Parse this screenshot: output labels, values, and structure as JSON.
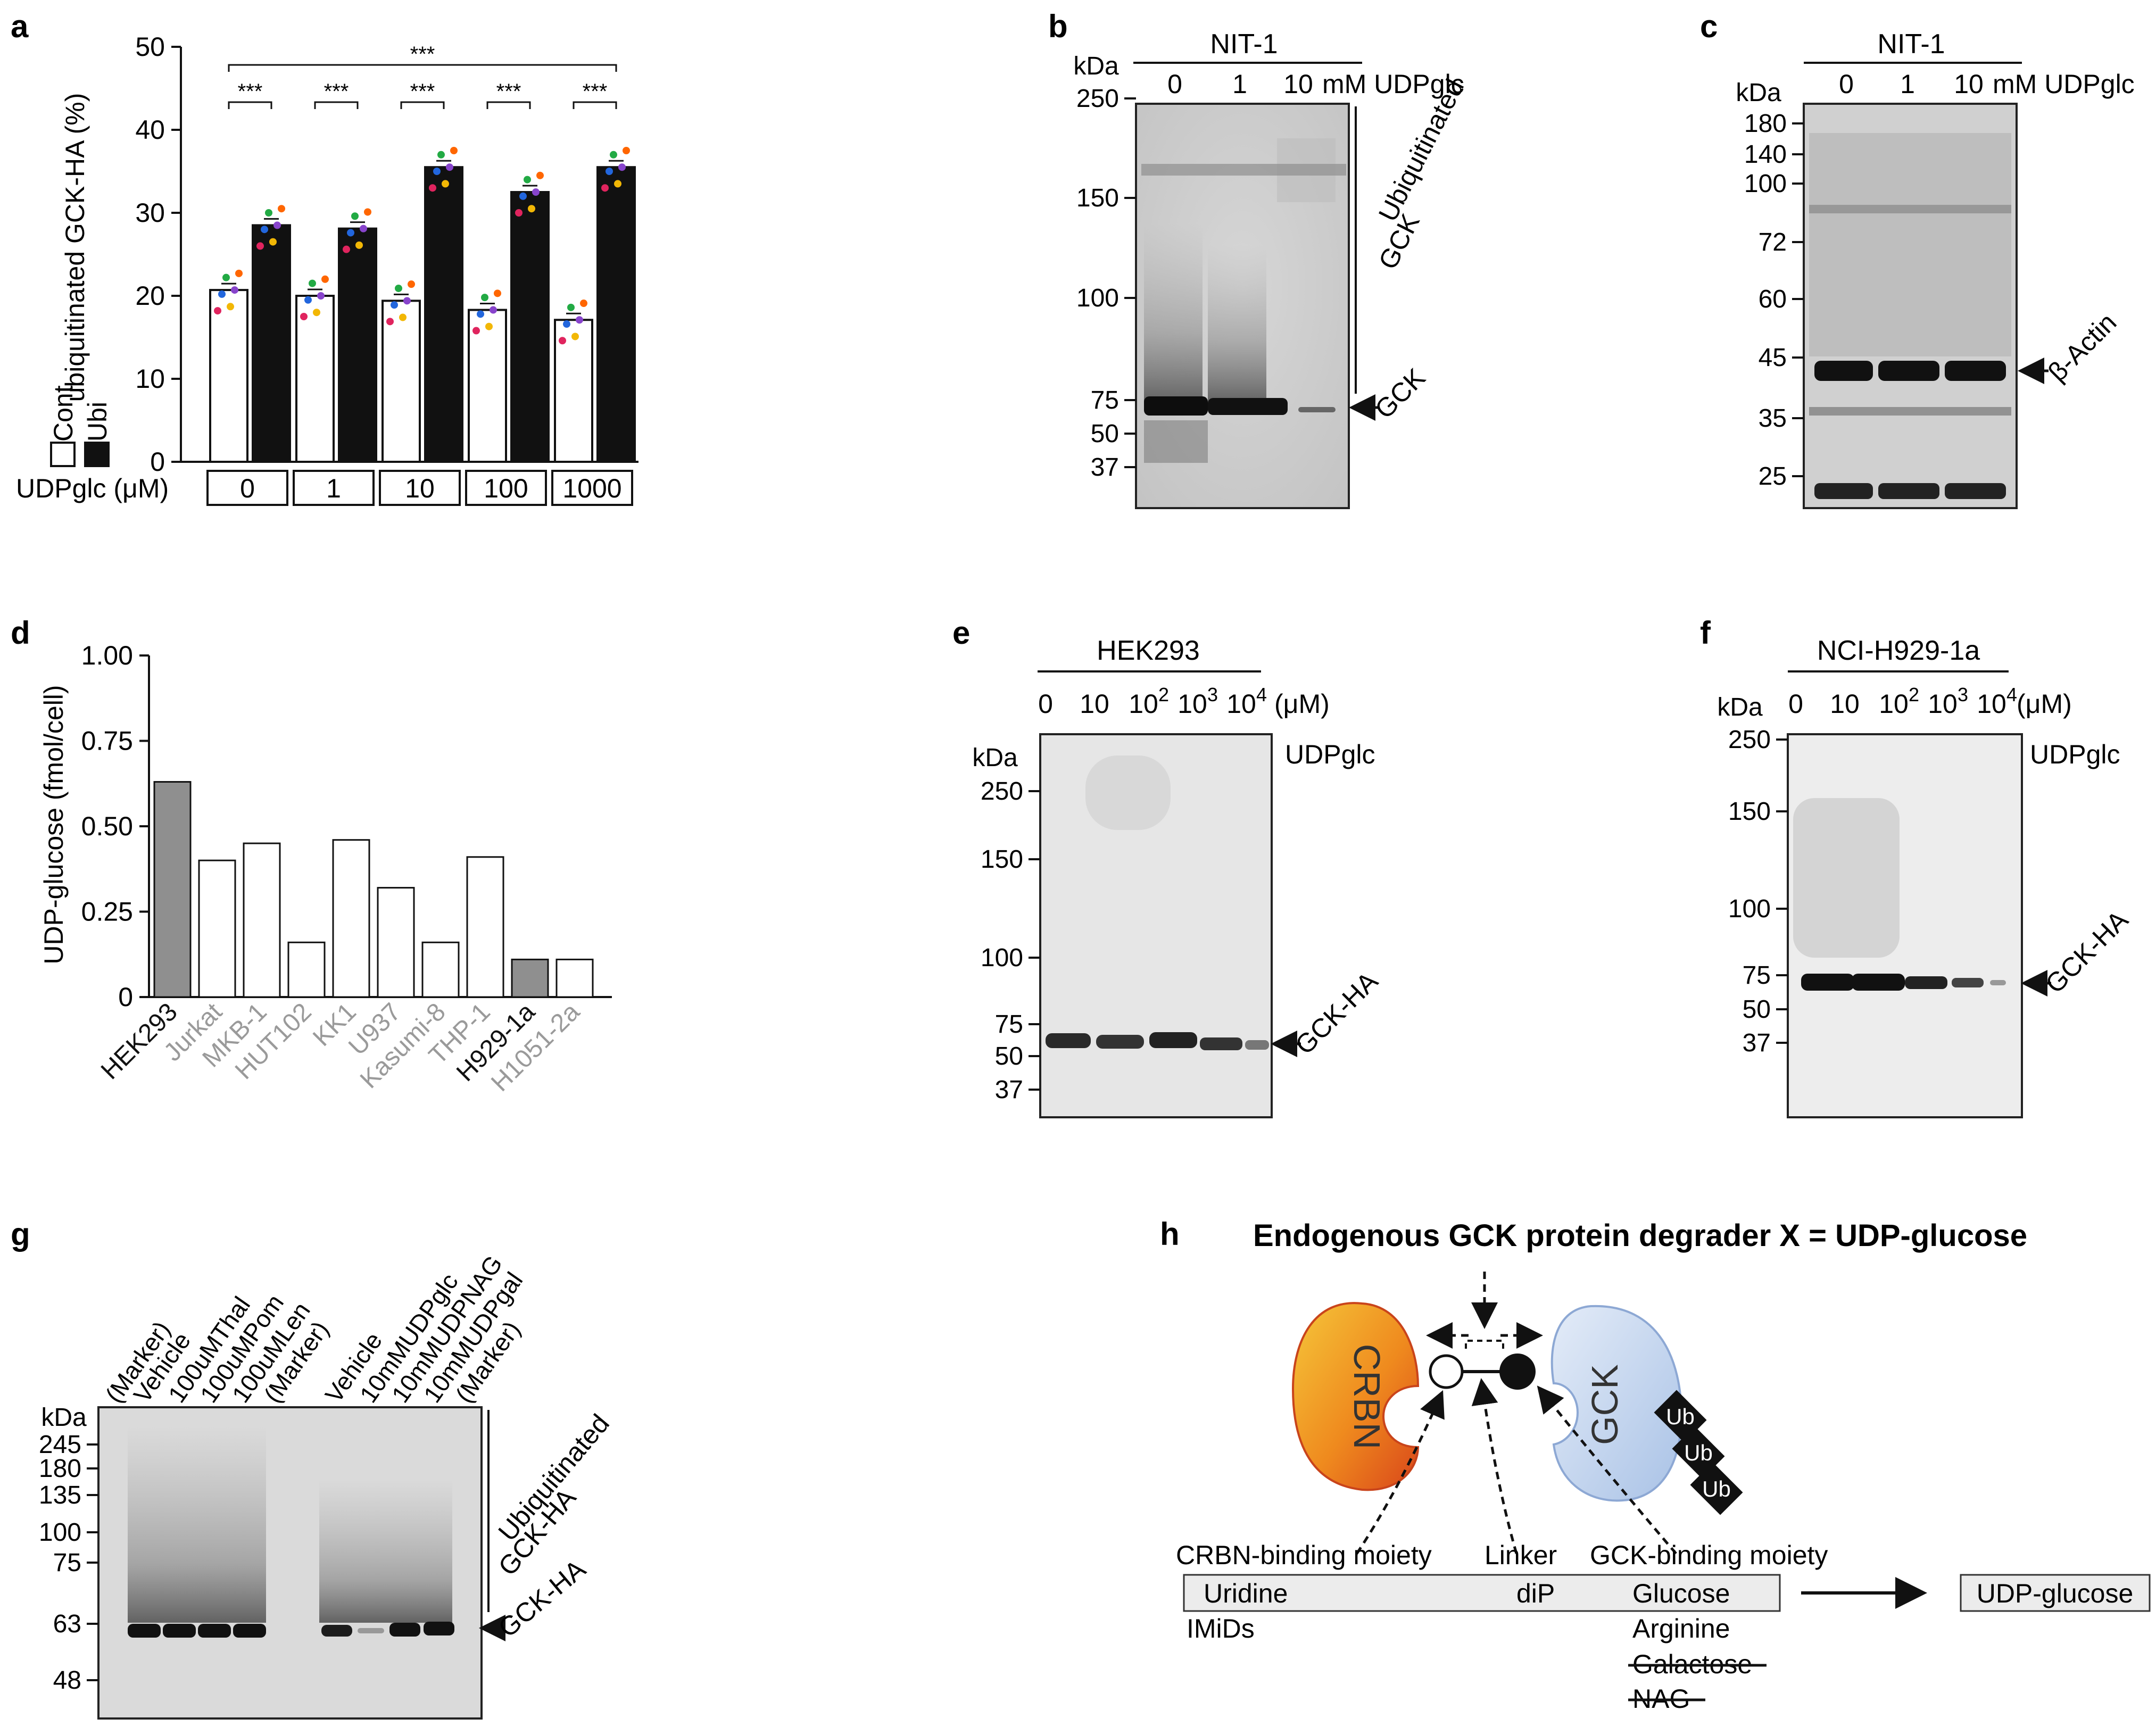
{
  "panels": {
    "a": "a",
    "b": "b",
    "c": "c",
    "d": "d",
    "e": "e",
    "f": "f",
    "g": "g",
    "h": "h"
  },
  "panel_a": {
    "ylabel": "ubiquitinated GCK-HA (%)",
    "yticks": [
      "0",
      "10",
      "20",
      "30",
      "40",
      "50"
    ],
    "legend": {
      "cont": "Cont",
      "ubi": "Ubi"
    },
    "xlabel": "UDPglc (μM)",
    "sig": "***"
  },
  "chart_data": [
    {
      "type": "bar",
      "panel": "a",
      "title": "",
      "xlabel": "UDPglc (μM)",
      "ylabel": "ubiquitinated GCK-HA (%)",
      "categories": [
        "0",
        "1",
        "10",
        "100",
        "1000"
      ],
      "series": [
        {
          "name": "Cont",
          "values": [
            20.7,
            20.0,
            19.4,
            18.3,
            17.1
          ],
          "color": "#ffffff"
        },
        {
          "name": "Ubi",
          "values": [
            28.5,
            28.1,
            35.5,
            32.5,
            35.5
          ],
          "color": "#111111"
        }
      ],
      "ylim": [
        0,
        50
      ],
      "significance": [
        "***",
        "***",
        "***",
        "***",
        "***",
        "***"
      ]
    },
    {
      "type": "bar",
      "panel": "d",
      "title": "",
      "xlabel": "",
      "ylabel": "UDP-glucose (fmol/cell)",
      "categories": [
        "HEK293",
        "Jurkat",
        "MKB-1",
        "HUT102",
        "KK1",
        "U937",
        "Kasumi-8",
        "THP-1",
        "H929-1a",
        "H1051-2a"
      ],
      "values": [
        0.63,
        0.4,
        0.45,
        0.16,
        0.46,
        0.32,
        0.16,
        0.41,
        0.11,
        0.11
      ],
      "highlight": [
        "HEK293",
        "H929-1a"
      ],
      "ylim": [
        0,
        1.0
      ],
      "yticks": [
        "0",
        "0.25",
        "0.50",
        "0.75",
        "1.00"
      ]
    }
  ],
  "panel_b": {
    "cell": "NIT-1",
    "kda": "kDa",
    "lanes": [
      "0",
      "1",
      "10"
    ],
    "lane_unit": "mM UDPglc",
    "markers": [
      "250",
      "150",
      "100",
      "75",
      "50",
      "37"
    ],
    "ubi_label": "Ubiquitinated",
    "ubi_label2": "GCK",
    "band_label": "GCK"
  },
  "panel_c": {
    "cell": "NIT-1",
    "kda": "kDa",
    "lanes": [
      "0",
      "1",
      "10"
    ],
    "lane_unit": "mM UDPglc",
    "markers": [
      "180",
      "140",
      "100",
      "72",
      "60",
      "45",
      "35",
      "25"
    ],
    "band_label": "β-Actin"
  },
  "panel_e": {
    "cell": "HEK293",
    "lanes": [
      "0",
      "10",
      "10",
      "10",
      "10"
    ],
    "lane_sup": [
      "",
      "",
      "2",
      "3",
      "4"
    ],
    "unit": "(μM)",
    "treat": "UDPglc",
    "kda": "kDa",
    "markers": [
      "250",
      "150",
      "100",
      "75",
      "50",
      "37"
    ],
    "band_label": "GCK-HA"
  },
  "panel_f": {
    "cell": "NCI-H929-1a",
    "lanes": [
      "0",
      "10",
      "10",
      "10",
      "10"
    ],
    "lane_sup": [
      "",
      "",
      "2",
      "3",
      "4"
    ],
    "unit": "(μM)",
    "treat": "UDPglc",
    "kda": "kDa",
    "markers": [
      "250",
      "150",
      "100",
      "75",
      "50",
      "37"
    ],
    "band_label": "GCK-HA"
  },
  "panel_g": {
    "kda": "kDa",
    "lanes": [
      "(Marker)",
      "Vehicle",
      "100uMThal",
      "100uMPom",
      "100uMLen",
      "(Marker)",
      "Vehicle",
      "10mMUDPglc",
      "10mMUDPNAG",
      "10mMUDPgal",
      "(Marker)"
    ],
    "markers": [
      "245",
      "180",
      "135",
      "100",
      "75",
      "63",
      "48"
    ],
    "ubi_label": "Ubiquitinated",
    "ubi_label2": "GCK-HA",
    "band_label": "GCK-HA"
  },
  "panel_h": {
    "title": "Endogenous GCK protein degrader X = UDP-glucose",
    "crbn": "CRBN",
    "gck": "GCK",
    "ub": [
      "Ub",
      "Ub",
      "Ub"
    ],
    "crbn_moiety": "CRBN-binding moiety",
    "linker": "Linker",
    "gck_moiety": "GCK-binding moiety",
    "box_uridine": "Uridine",
    "box_dip": "diP",
    "box_glucose": "Glucose",
    "imids": "IMiDs",
    "arginine": "Arginine",
    "galactose": "Galactose",
    "nag": "NAG",
    "result": "UDP-glucose"
  }
}
